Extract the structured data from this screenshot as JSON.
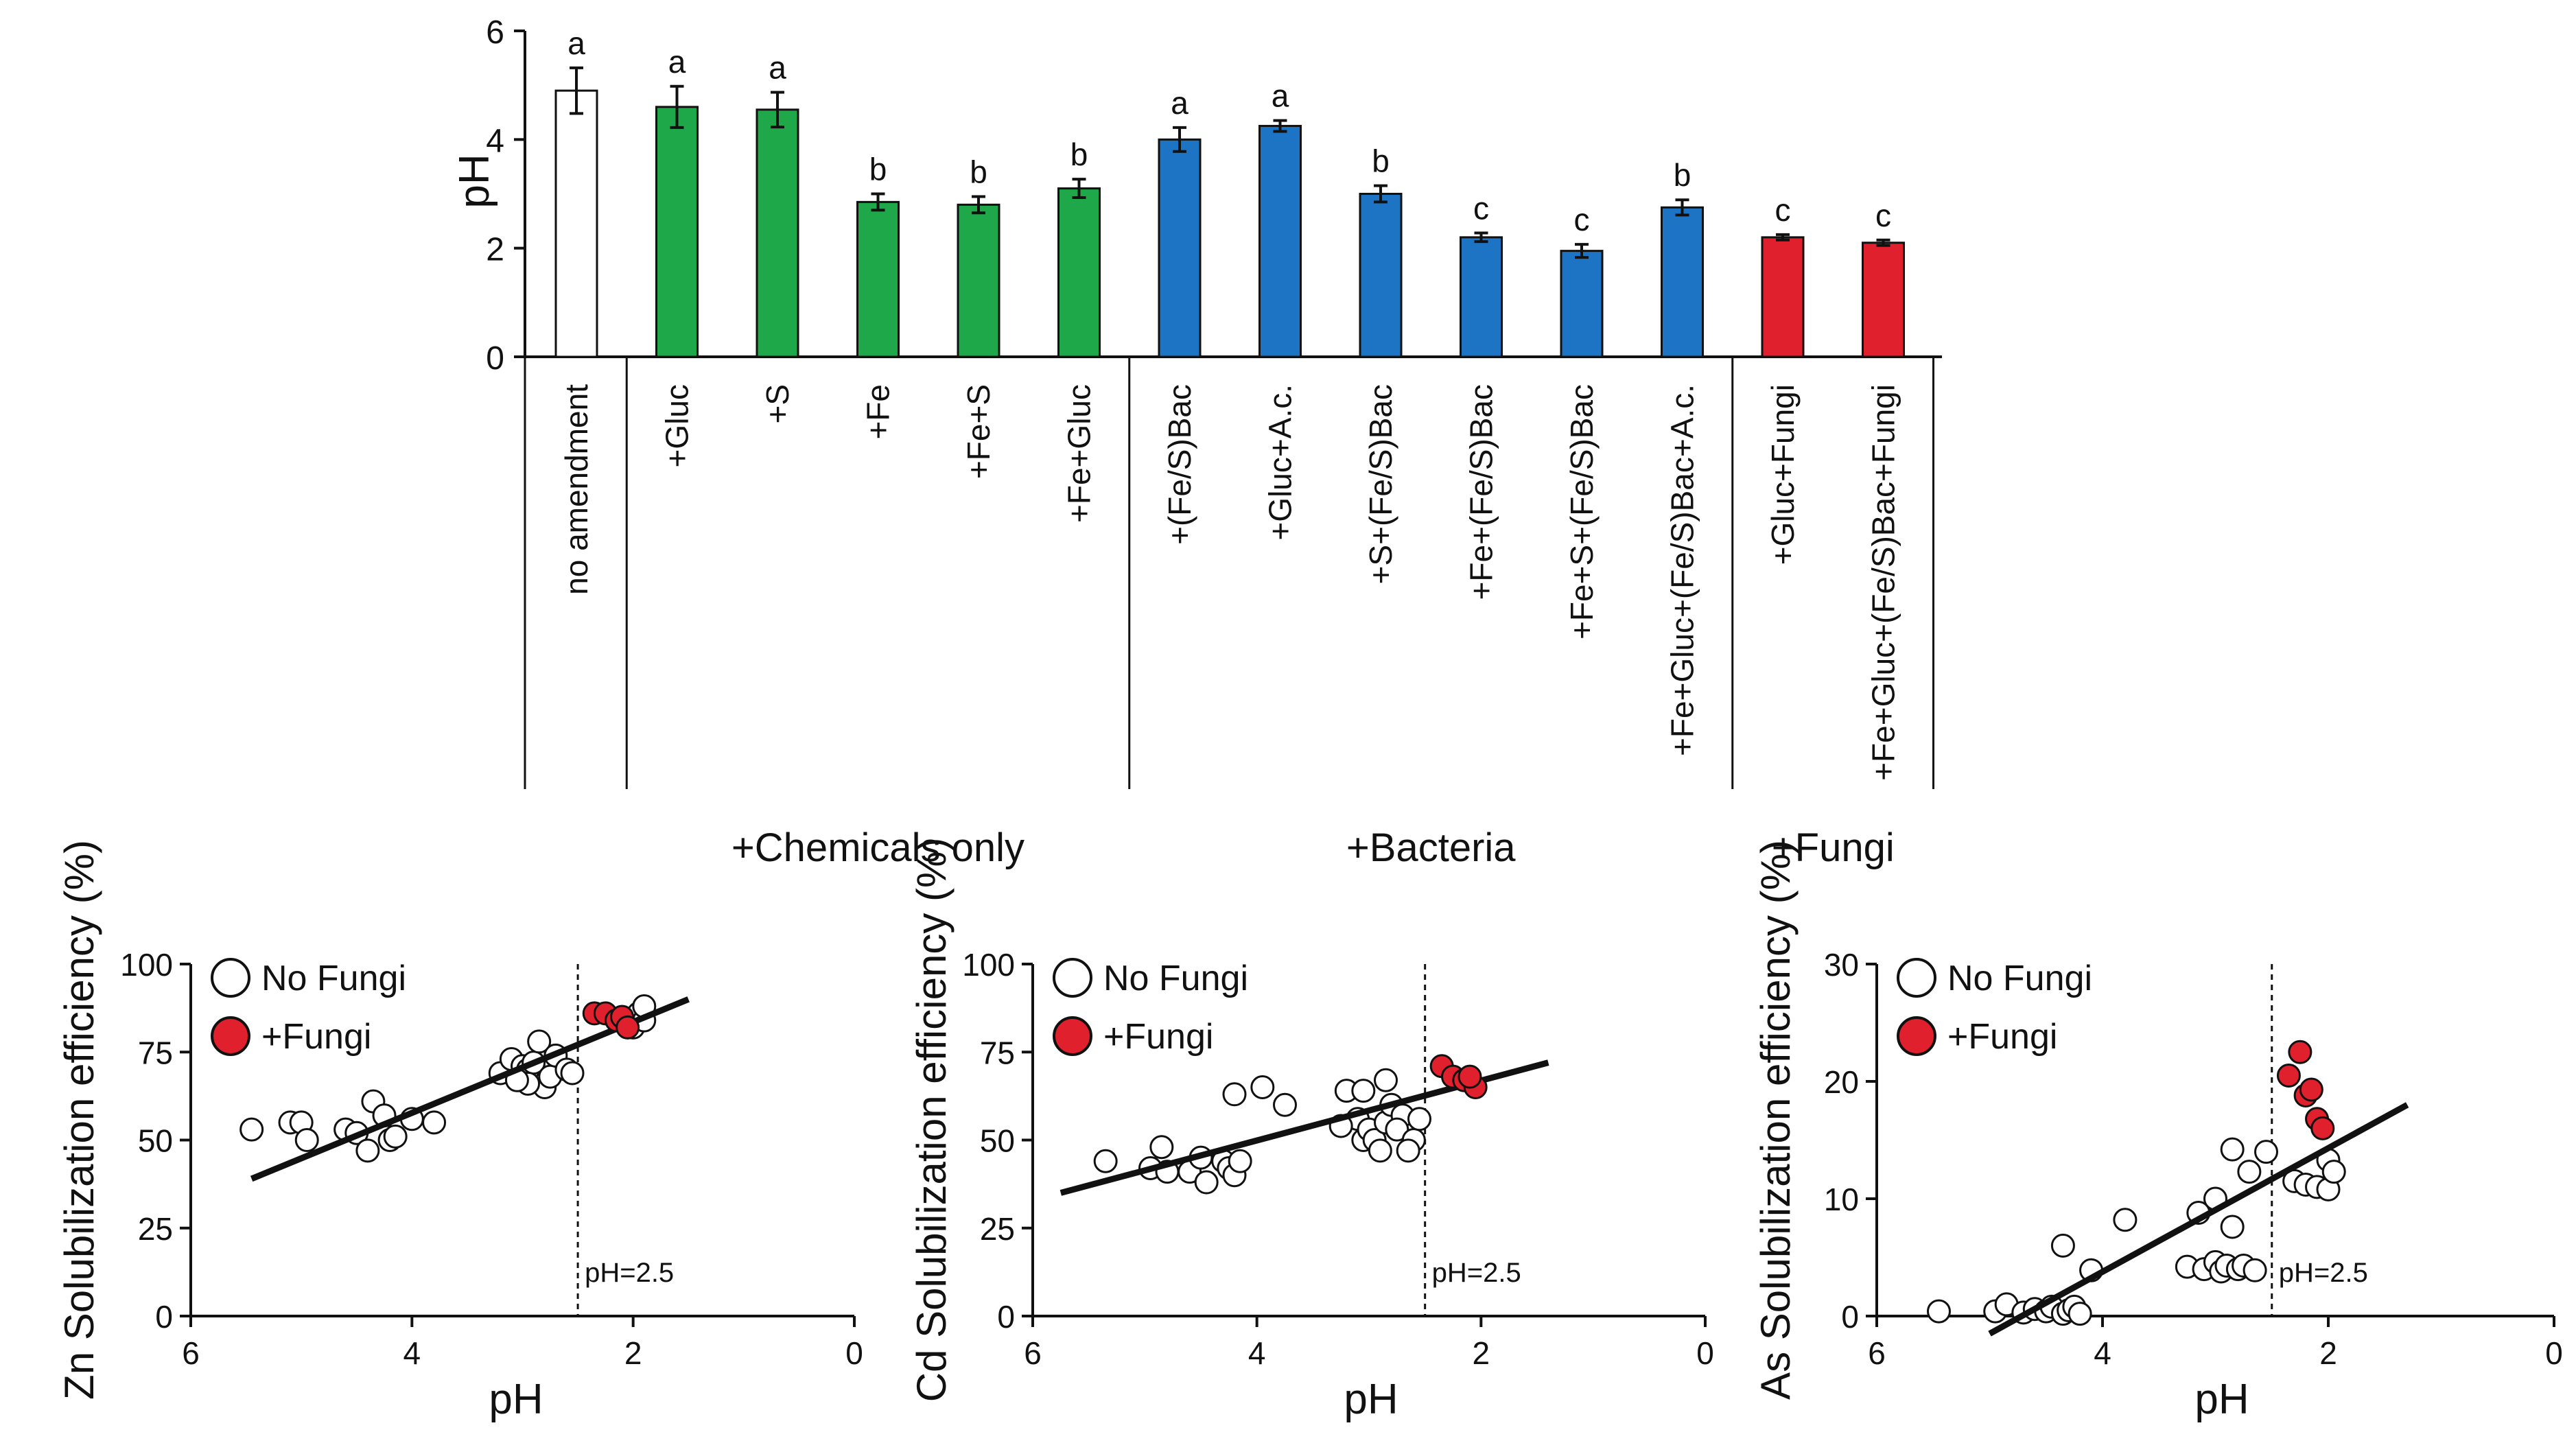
{
  "chart_data": [
    {
      "type": "bar",
      "ylabel": "pH",
      "ylim": [
        0,
        6
      ],
      "yticks": [
        "0",
        "2",
        "4",
        "6"
      ],
      "categories": [
        "no amendment",
        "+Gluc",
        "+S",
        "+Fe",
        "+Fe+S",
        "+Fe+Gluc",
        "+(Fe/S)Bac",
        "+Gluc+A.c.",
        "+S+(Fe/S)Bac",
        "+Fe+(Fe/S)Bac",
        "+Fe+S+(Fe/S)Bac",
        "+Fe+Gluc+(Fe/S)Bac+A.c.",
        "+Gluc+Fungi",
        "+Fe+Gluc+(Fe/S)Bac+Fungi"
      ],
      "values": [
        4.9,
        4.6,
        4.55,
        2.85,
        2.8,
        3.1,
        4.0,
        4.25,
        3.0,
        2.2,
        1.95,
        2.75,
        2.2,
        2.1
      ],
      "errors": [
        0.42,
        0.38,
        0.32,
        0.15,
        0.15,
        0.17,
        0.22,
        0.1,
        0.15,
        0.08,
        0.12,
        0.14,
        0.05,
        0.05
      ],
      "significance": [
        "a",
        "a",
        "a",
        "b",
        "b",
        "b",
        "a",
        "a",
        "b",
        "c",
        "c",
        "b",
        "c",
        "c"
      ],
      "bar_colors": [
        "#ffffff",
        "#1fa84a",
        "#1fa84a",
        "#1fa84a",
        "#1fa84a",
        "#1fa84a",
        "#1d74c4",
        "#1d74c4",
        "#1d74c4",
        "#1d74c4",
        "#1d74c4",
        "#1d74c4",
        "#e0202c",
        "#e0202c"
      ],
      "groups": [
        {
          "label": "+Chemicals only",
          "start": 1,
          "end": 5
        },
        {
          "label": "+Bacteria",
          "start": 6,
          "end": 11
        },
        {
          "label": "+Fungi",
          "start": 12,
          "end": 13
        }
      ]
    },
    {
      "type": "scatter",
      "ylabel": "Zn Solubilization efficiency (%)",
      "xlabel": "pH",
      "xlim": [
        6,
        0
      ],
      "ylim": [
        0,
        100
      ],
      "xticks": [
        "6",
        "4",
        "2",
        "0"
      ],
      "yticks": [
        "0",
        "25",
        "50",
        "75",
        "100"
      ],
      "legend": [
        "No Fungi",
        "+Fungi"
      ],
      "threshold_x": 2.5,
      "threshold_label": "pH=2.5",
      "no_fungi": [
        [
          5.45,
          53
        ],
        [
          5.1,
          55
        ],
        [
          5.0,
          55
        ],
        [
          4.95,
          50
        ],
        [
          4.6,
          53
        ],
        [
          4.5,
          52
        ],
        [
          4.4,
          47
        ],
        [
          4.35,
          61
        ],
        [
          4.25,
          57
        ],
        [
          4.2,
          50
        ],
        [
          4.15,
          51
        ],
        [
          4.0,
          56
        ],
        [
          3.8,
          55
        ],
        [
          3.2,
          69
        ],
        [
          3.1,
          73
        ],
        [
          3.0,
          71
        ],
        [
          2.95,
          70
        ],
        [
          2.9,
          72
        ],
        [
          2.85,
          78
        ],
        [
          2.8,
          65
        ],
        [
          2.75,
          68
        ],
        [
          2.7,
          74
        ],
        [
          2.6,
          70
        ],
        [
          2.55,
          69
        ],
        [
          2.95,
          66
        ],
        [
          3.05,
          67
        ],
        [
          2.0,
          82
        ],
        [
          1.95,
          86
        ],
        [
          1.9,
          84
        ],
        [
          1.9,
          88
        ]
      ],
      "fungi": [
        [
          2.35,
          86
        ],
        [
          2.25,
          86
        ],
        [
          2.15,
          84
        ],
        [
          2.1,
          85
        ],
        [
          2.05,
          82
        ]
      ],
      "fit": [
        [
          5.45,
          39
        ],
        [
          1.5,
          90
        ]
      ]
    },
    {
      "type": "scatter",
      "ylabel": "Cd Solubilization efficiency (%)",
      "xlabel": "pH",
      "xlim": [
        6,
        0
      ],
      "ylim": [
        0,
        100
      ],
      "xticks": [
        "6",
        "4",
        "2",
        "0"
      ],
      "yticks": [
        "0",
        "25",
        "50",
        "75",
        "100"
      ],
      "legend": [
        "No Fungi",
        "+Fungi"
      ],
      "threshold_x": 2.5,
      "threshold_label": "pH=2.5",
      "no_fungi": [
        [
          5.35,
          44
        ],
        [
          4.95,
          42
        ],
        [
          4.85,
          48
        ],
        [
          4.8,
          41
        ],
        [
          4.6,
          41
        ],
        [
          4.5,
          45
        ],
        [
          4.45,
          38
        ],
        [
          4.3,
          44
        ],
        [
          4.25,
          42
        ],
        [
          4.2,
          40
        ],
        [
          4.15,
          44
        ],
        [
          4.2,
          63
        ],
        [
          3.95,
          65
        ],
        [
          3.75,
          60
        ],
        [
          3.2,
          64
        ],
        [
          3.1,
          56
        ],
        [
          3.05,
          50
        ],
        [
          3.0,
          53
        ],
        [
          3.05,
          64
        ],
        [
          2.95,
          50
        ],
        [
          2.9,
          47
        ],
        [
          2.85,
          55
        ],
        [
          2.85,
          67
        ],
        [
          2.8,
          60
        ],
        [
          2.7,
          57
        ],
        [
          2.75,
          53
        ],
        [
          2.6,
          50
        ],
        [
          2.55,
          56
        ],
        [
          2.65,
          47
        ],
        [
          3.25,
          54
        ]
      ],
      "fungi": [
        [
          2.35,
          71
        ],
        [
          2.25,
          68
        ],
        [
          2.15,
          67
        ],
        [
          2.05,
          65
        ],
        [
          2.1,
          68
        ]
      ],
      "fit": [
        [
          5.75,
          35
        ],
        [
          1.4,
          72
        ]
      ]
    },
    {
      "type": "scatter",
      "ylabel": "As Solubilization efficiency (%)",
      "xlabel": "pH",
      "xlim": [
        6,
        0
      ],
      "ylim": [
        0,
        30
      ],
      "xticks": [
        "6",
        "4",
        "2",
        "0"
      ],
      "yticks": [
        "0",
        "10",
        "20",
        "30"
      ],
      "legend": [
        "No Fungi",
        "+Fungi"
      ],
      "threshold_x": 2.5,
      "threshold_label": "pH=2.5",
      "no_fungi": [
        [
          5.45,
          0.4
        ],
        [
          4.95,
          0.4
        ],
        [
          4.85,
          1.0
        ],
        [
          4.7,
          0.3
        ],
        [
          4.6,
          0.6
        ],
        [
          4.5,
          0.4
        ],
        [
          4.45,
          0.8
        ],
        [
          4.35,
          0.2
        ],
        [
          4.3,
          0.5
        ],
        [
          4.25,
          0.8
        ],
        [
          4.2,
          0.2
        ],
        [
          4.35,
          6.0
        ],
        [
          4.1,
          3.9
        ],
        [
          3.8,
          8.2
        ],
        [
          3.25,
          4.2
        ],
        [
          3.15,
          8.8
        ],
        [
          3.1,
          4.0
        ],
        [
          3.0,
          10.0
        ],
        [
          3.0,
          4.6
        ],
        [
          2.95,
          3.8
        ],
        [
          2.9,
          4.3
        ],
        [
          2.85,
          7.6
        ],
        [
          2.85,
          14.2
        ],
        [
          2.8,
          4.0
        ],
        [
          2.75,
          4.3
        ],
        [
          2.7,
          12.3
        ],
        [
          2.65,
          3.9
        ],
        [
          2.55,
          14.0
        ],
        [
          2.3,
          11.5
        ],
        [
          2.2,
          11.2
        ],
        [
          2.1,
          11.0
        ],
        [
          2.0,
          10.8
        ],
        [
          2.0,
          13.3
        ],
        [
          1.95,
          12.3
        ]
      ],
      "fungi": [
        [
          2.35,
          20.5
        ],
        [
          2.25,
          22.5
        ],
        [
          2.2,
          18.8
        ],
        [
          2.15,
          19.3
        ],
        [
          2.1,
          16.8
        ],
        [
          2.05,
          16.0
        ]
      ],
      "fit": [
        [
          5.0,
          -1.5
        ],
        [
          1.3,
          18.0
        ]
      ]
    }
  ]
}
